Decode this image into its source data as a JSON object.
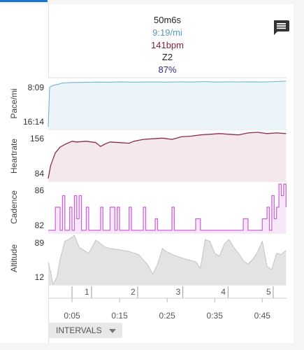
{
  "summary": {
    "duration": "50m6s",
    "pace": "9:19/mi",
    "heart_rate": "141bpm",
    "zone": "Z2",
    "percent": "87%"
  },
  "colors": {
    "pace": "#6fb3cf",
    "heartrate": "#8b2d4f",
    "cadence": "#cc5fd8",
    "altitude": "#c4c4c4",
    "zone": "#222222",
    "percent": "#3a2a7a",
    "tab_accent": "#1976d2"
  },
  "icons": {
    "comment": "comment-icon",
    "intervals_caret": "caret-down-icon"
  },
  "intervals_button": {
    "label": "INTERVALS"
  },
  "chart_data": [
    {
      "type": "line",
      "name": "pace",
      "ylabel": "Pace/mi",
      "y_ticks": [
        "8:09",
        "16:14"
      ],
      "ylim_seconds": [
        489,
        974
      ],
      "inverted": true,
      "x_minutes": [
        0,
        0.3,
        1,
        2,
        3,
        5,
        8,
        10,
        13,
        15,
        18,
        20,
        23,
        25,
        28,
        30,
        33,
        35,
        38,
        40,
        43,
        45,
        48,
        50
      ],
      "y_seconds": [
        974,
        560,
        540,
        530,
        515,
        510,
        508,
        505,
        507,
        503,
        506,
        505,
        504,
        506,
        503,
        505,
        500,
        505,
        503,
        504,
        502,
        505,
        500,
        495
      ]
    },
    {
      "type": "line",
      "name": "heartrate",
      "ylabel": "Heartrate",
      "y_ticks": [
        "156",
        "84"
      ],
      "ylim": [
        84,
        156
      ],
      "x_minutes": [
        0,
        0.5,
        1.5,
        2.5,
        3.5,
        5,
        6,
        8,
        10,
        11,
        12,
        13,
        15,
        17,
        18,
        20,
        22,
        24,
        26,
        28,
        30,
        32,
        34,
        36,
        38,
        40,
        42,
        44,
        46,
        48,
        50
      ],
      "values": [
        84,
        104,
        124,
        133,
        137,
        142,
        141,
        142,
        140,
        134,
        138,
        141,
        140,
        139,
        142,
        145,
        146,
        147,
        145,
        149,
        150,
        152,
        153,
        154,
        153,
        152,
        155,
        156,
        154,
        155,
        154
      ]
    },
    {
      "type": "line",
      "name": "cadence",
      "ylabel": "Cadence",
      "y_ticks": [
        "86",
        "82"
      ],
      "ylim": [
        82,
        86
      ],
      "x_minutes": [
        0,
        1,
        1.5,
        2.5,
        3,
        3.5,
        4.5,
        5,
        5.5,
        6,
        6.5,
        7,
        7.5,
        8,
        8.5,
        9,
        10,
        11,
        11.5,
        12,
        13,
        14,
        14.5,
        15,
        16,
        17,
        17.5,
        18,
        19,
        20,
        20.5,
        21,
        22,
        22.5,
        23,
        24,
        25,
        26,
        26.5,
        27,
        28,
        29,
        30,
        31,
        32,
        33,
        34,
        35,
        36,
        37,
        38,
        39,
        40,
        41,
        42,
        43,
        44,
        45,
        46,
        46.5,
        47,
        47.5,
        48,
        48.5,
        49,
        49.5,
        50
      ],
      "values": [
        82,
        82,
        84,
        82,
        85,
        82,
        84,
        82,
        85,
        83,
        85,
        82,
        82,
        84,
        82,
        82,
        82,
        84,
        82,
        82,
        84,
        82,
        84,
        82,
        82,
        84,
        82,
        82,
        82,
        84,
        82,
        82,
        82,
        83,
        82,
        82,
        82,
        84,
        82,
        82,
        82,
        82,
        82,
        83,
        82,
        82,
        82,
        82,
        82,
        82,
        82,
        82,
        82,
        83,
        82,
        82,
        82,
        83,
        84,
        82,
        85,
        83,
        84,
        86,
        85,
        86,
        84
      ]
    },
    {
      "type": "area",
      "name": "altitude",
      "ylabel": "Altitude",
      "y_ticks": [
        "89",
        "12"
      ],
      "ylim": [
        12,
        89
      ],
      "x_minutes": [
        0,
        0.5,
        1,
        1.8,
        2.5,
        3.5,
        4.5,
        5.5,
        6.5,
        7.5,
        8.5,
        10,
        11,
        12,
        13,
        15,
        17,
        19,
        21,
        22,
        23,
        24,
        25,
        27,
        29,
        31,
        32,
        33,
        34,
        35,
        36,
        37,
        38,
        39,
        40,
        41,
        42,
        43,
        44,
        45,
        46,
        47,
        48,
        49,
        50
      ],
      "values": [
        45,
        30,
        8,
        20,
        50,
        80,
        84,
        90,
        70,
        65,
        60,
        82,
        76,
        70,
        68,
        66,
        63,
        58,
        40,
        25,
        42,
        68,
        62,
        55,
        50,
        46,
        35,
        83,
        80,
        60,
        55,
        75,
        83,
        70,
        60,
        48,
        42,
        50,
        62,
        80,
        38,
        33,
        60,
        58,
        65
      ]
    }
  ],
  "intervals": {
    "labels": [
      "1",
      "2",
      "3",
      "4",
      "5"
    ],
    "boundaries_minutes": [
      5,
      9.1,
      18.8,
      28.3,
      37.8,
      47.3
    ]
  },
  "x_axis": {
    "labels": [
      "0:05",
      "0:15",
      "0:25",
      "0:35",
      "0:45"
    ],
    "positions_minutes": [
      5,
      15,
      25,
      35,
      45
    ],
    "range_minutes": [
      0,
      50.1
    ]
  }
}
